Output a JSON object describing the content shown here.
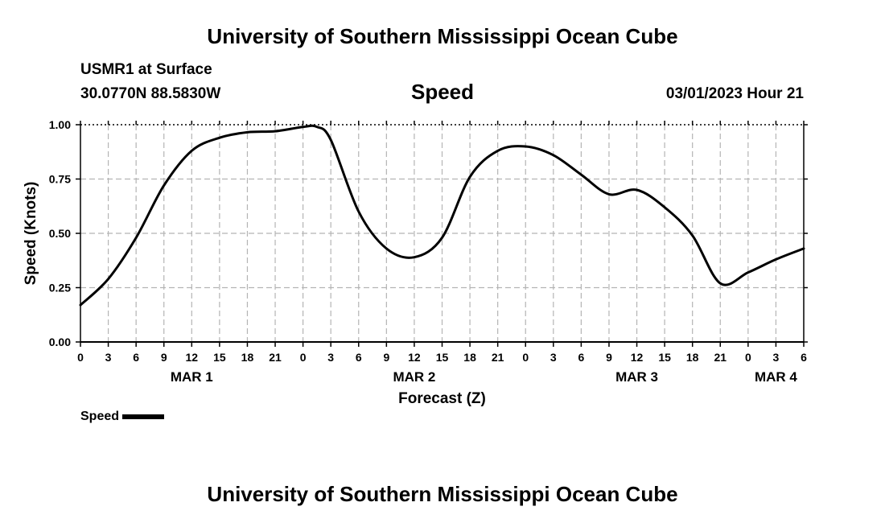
{
  "header": {
    "title": "University of Southern Mississippi Ocean Cube",
    "station": "USMR1 at Surface",
    "coords": "30.0770N  88.5830W",
    "chart_name": "Speed",
    "datetime": "03/01/2023 Hour 21"
  },
  "footer": {
    "title": "University of Southern Mississippi Ocean Cube"
  },
  "legend": {
    "label": "Speed",
    "color": "#000000"
  },
  "chart_data": {
    "type": "line",
    "title": "Speed",
    "xlabel": "Forecast (Z)",
    "ylabel": "Speed (Knots)",
    "xlim": [
      0,
      78
    ],
    "ylim": [
      0,
      1.0
    ],
    "grid": true,
    "x_ticks": [
      0,
      3,
      6,
      9,
      12,
      15,
      18,
      21,
      24,
      27,
      30,
      33,
      36,
      39,
      42,
      45,
      48,
      51,
      54,
      57,
      60,
      63,
      66,
      69,
      72,
      75,
      78
    ],
    "x_tick_labels": [
      "0",
      "3",
      "6",
      "9",
      "12",
      "15",
      "18",
      "21",
      "0",
      "3",
      "6",
      "9",
      "12",
      "15",
      "18",
      "21",
      "0",
      "3",
      "6",
      "9",
      "12",
      "15",
      "18",
      "21",
      "0",
      "3",
      "6"
    ],
    "y_ticks": [
      0,
      0.25,
      0.5,
      0.75,
      1.0
    ],
    "y_tick_labels": [
      "0.00",
      "0.25",
      "0.50",
      "0.75",
      "1.00"
    ],
    "date_labels": [
      {
        "x": 12,
        "label": "MAR 1"
      },
      {
        "x": 36,
        "label": "MAR 2"
      },
      {
        "x": 60,
        "label": "MAR 3"
      },
      {
        "x": 75,
        "label": "MAR 4"
      }
    ],
    "series": [
      {
        "name": "Speed",
        "color": "#000000",
        "x": [
          0,
          3,
          6,
          9,
          12,
          15,
          18,
          21,
          24,
          25.5,
          27,
          30,
          33,
          36,
          39,
          42,
          45,
          48,
          51,
          54,
          57,
          60,
          63,
          66,
          69,
          72,
          75,
          78
        ],
        "y": [
          0.17,
          0.29,
          0.48,
          0.72,
          0.88,
          0.94,
          0.965,
          0.97,
          0.99,
          0.99,
          0.93,
          0.6,
          0.43,
          0.39,
          0.48,
          0.76,
          0.88,
          0.9,
          0.86,
          0.77,
          0.68,
          0.7,
          0.62,
          0.49,
          0.27,
          0.32,
          0.38,
          0.43
        ]
      }
    ]
  }
}
